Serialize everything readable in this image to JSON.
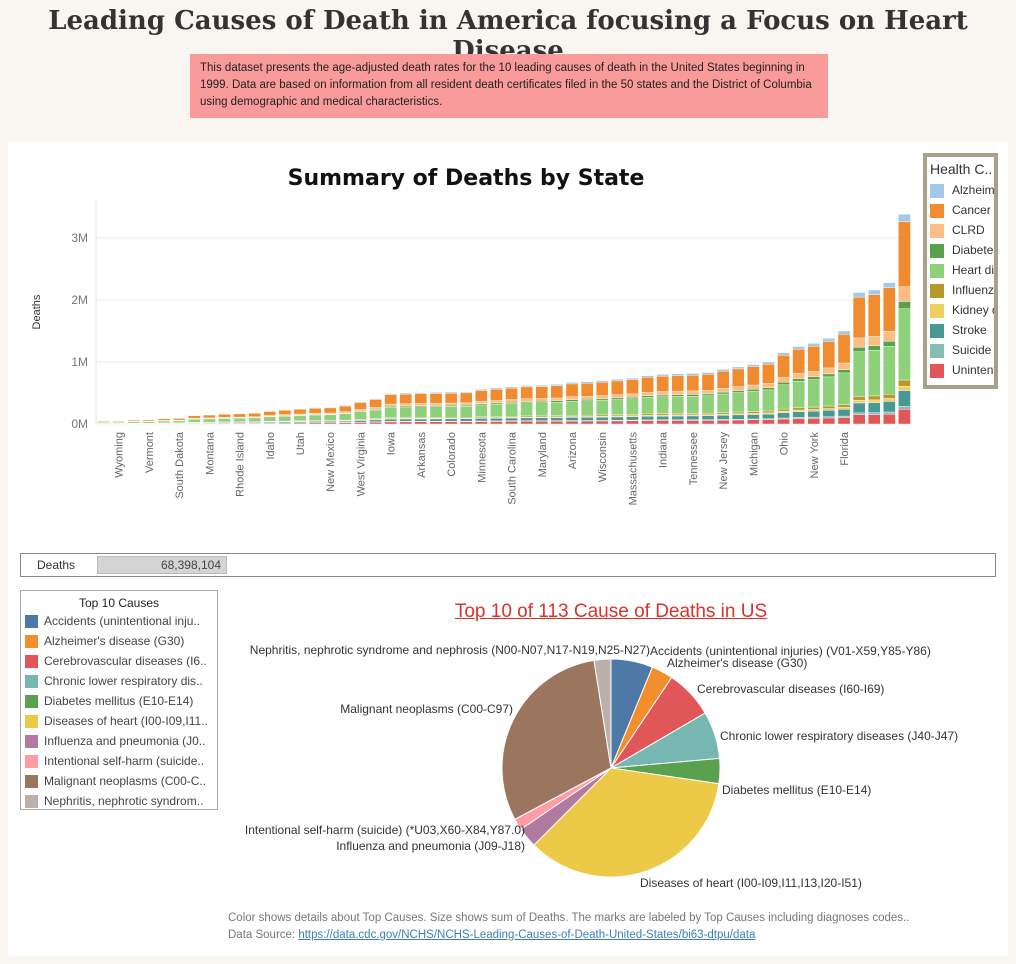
{
  "page": {
    "title": "Leading Causes of Death in America focusing a Focus on Heart Disease",
    "intro": "This dataset presents the age-adjusted death rates for the 10 leading causes of death in the United States beginning in 1999. Data are based on information from all resident death certificates filed in the 50 states and the District of Columbia using demographic and medical characteristics."
  },
  "deaths_summary": {
    "label": "Deaths",
    "value": "68,398,104"
  },
  "footnote": {
    "text": "Color shows details about Top Causes.  Size shows sum of Deaths.  The marks are labeled by Top Causes including diagnoses codes..",
    "source_prefix": "Data Source: ",
    "source_link": "https://data.cdc.gov/NCHS/NCHS-Leading-Causes-of-Death-United-States/bi63-dtpu/data"
  },
  "health_legend": {
    "title": "Health C..",
    "items": [
      "Alzheimer's",
      "Cancer",
      "CLRD",
      "Diabetes",
      "Heart disease",
      "Influenza",
      "Kidney disease",
      "Stroke",
      "Suicide",
      "Unintentional injuries"
    ]
  },
  "top10_legend": {
    "title": "Top 10 Causes",
    "items": [
      "Accidents (unintentional inju..",
      "Alzheimer's disease (G30)",
      "Cerebrovascular diseases (I6..",
      "Chronic lower respiratory dis..",
      "Diabetes mellitus (E10-E14)",
      "Diseases of heart (I00-I09,I11..",
      "Influenza and pneumonia (J0..",
      "Intentional self-harm (suicide..",
      "Malignant neoplasms (C00-C..",
      "Nephritis, nephrotic syndrom.."
    ]
  },
  "colors": {
    "alzheimers": "#a3c8e8",
    "cancer": "#f08c2f",
    "clrd": "#fbbd83",
    "diabetes": "#59a14f",
    "heart": "#8fd07a",
    "influenza": "#b6992d",
    "kidney": "#f1ce63",
    "stroke": "#499894",
    "suicide": "#86bcb6",
    "unintentional": "#e15759",
    "pie_accidents": "#4e79a7",
    "pie_alzheimers": "#f28e2b",
    "pie_cerebro": "#e15759",
    "pie_clrd": "#76b7b2",
    "pie_diabetes": "#59a14f",
    "pie_heart": "#edc948",
    "pie_influenza": "#b07aa1",
    "pie_suicide": "#ff9da7",
    "pie_malignant": "#9c755f",
    "pie_nephritis": "#bab0ac"
  },
  "chart_data": [
    {
      "type": "bar",
      "stacked": true,
      "title": "Summary of Deaths by State",
      "ylabel": "Deaths",
      "xlabel": "",
      "ylim": [
        0,
        3450000
      ],
      "yticks": [
        0,
        1000000,
        2000000,
        3000000
      ],
      "ytick_labels": [
        "0M",
        "1M",
        "2M",
        "3M"
      ],
      "grid": true,
      "legend_position": "right",
      "categories": [
        "",
        "Wyoming",
        "",
        "Vermont",
        "",
        "South Dakota",
        "",
        "Montana",
        "",
        "Rhode Island",
        "",
        "Idaho",
        "",
        "Utah",
        "",
        "New Mexico",
        "",
        "West Virginia",
        "",
        "Iowa",
        "",
        "Arkansas",
        "",
        "Colorado",
        "",
        "Minnesota",
        "",
        "South Carolina",
        "",
        "Maryland",
        "",
        "Arizona",
        "",
        "Wisconsin",
        "",
        "Massachusetts",
        "",
        "Indiana",
        "",
        "Tennessee",
        "",
        "New Jersey",
        "",
        "Michigan",
        "",
        "Ohio",
        "",
        "New York",
        "",
        "Florida",
        ""
      ],
      "totals": [
        50000,
        52000,
        65000,
        70000,
        88000,
        95000,
        140000,
        150000,
        165000,
        170000,
        180000,
        210000,
        230000,
        245000,
        265000,
        270000,
        300000,
        360000,
        410000,
        490000,
        500000,
        505000,
        510000,
        515000,
        520000,
        560000,
        580000,
        600000,
        620000,
        625000,
        640000,
        670000,
        680000,
        700000,
        720000,
        740000,
        780000,
        800000,
        810000,
        815000,
        830000,
        880000,
        920000,
        960000,
        1000000,
        1150000,
        1250000,
        1300000,
        1380000,
        1500000,
        2120000,
        2160000,
        2280000,
        3380000
      ],
      "series": [
        {
          "name": "Alzheimer's",
          "share": 0.035
        },
        {
          "name": "Cancer",
          "share": 0.31
        },
        {
          "name": "CLRD",
          "share": 0.07
        },
        {
          "name": "Diabetes",
          "share": 0.035
        },
        {
          "name": "Heart disease",
          "share": 0.34
        },
        {
          "name": "Influenza",
          "share": 0.03
        },
        {
          "name": "Kidney disease",
          "share": 0.02
        },
        {
          "name": "Stroke",
          "share": 0.075
        },
        {
          "name": "Suicide",
          "share": 0.015
        },
        {
          "name": "Unintentional injuries",
          "share": 0.07
        }
      ]
    },
    {
      "type": "pie",
      "title": "Top 10 of 113 Cause of Deaths in US",
      "slices": [
        {
          "label": "Accidents (unintentional injuries) (V01-X59,Y85-Y86)",
          "value": 6.2
        },
        {
          "label": "Alzheimer's disease (G30)",
          "value": 3.2
        },
        {
          "label": "Cerebrovascular diseases (I60-I69)",
          "value": 7.2
        },
        {
          "label": "Chronic lower respiratory diseases (J40-J47)",
          "value": 7.0
        },
        {
          "label": "Diabetes mellitus (E10-E14)",
          "value": 3.7
        },
        {
          "label": "Diseases of heart (I00-I09,I11,I13,I20-I51)",
          "value": 35.2
        },
        {
          "label": "Influenza and pneumonia (J09-J18)",
          "value": 3.0
        },
        {
          "label": "Intentional self-harm (suicide) (*U03,X60-X84,Y87.0)",
          "value": 1.7
        },
        {
          "label": "Malignant neoplasms (C00-C97)",
          "value": 30.3
        },
        {
          "label": "Nephritis, nephrotic syndrome and nephrosis (N00-N07,N17-N19,N25-N27)",
          "value": 2.5
        }
      ]
    }
  ]
}
